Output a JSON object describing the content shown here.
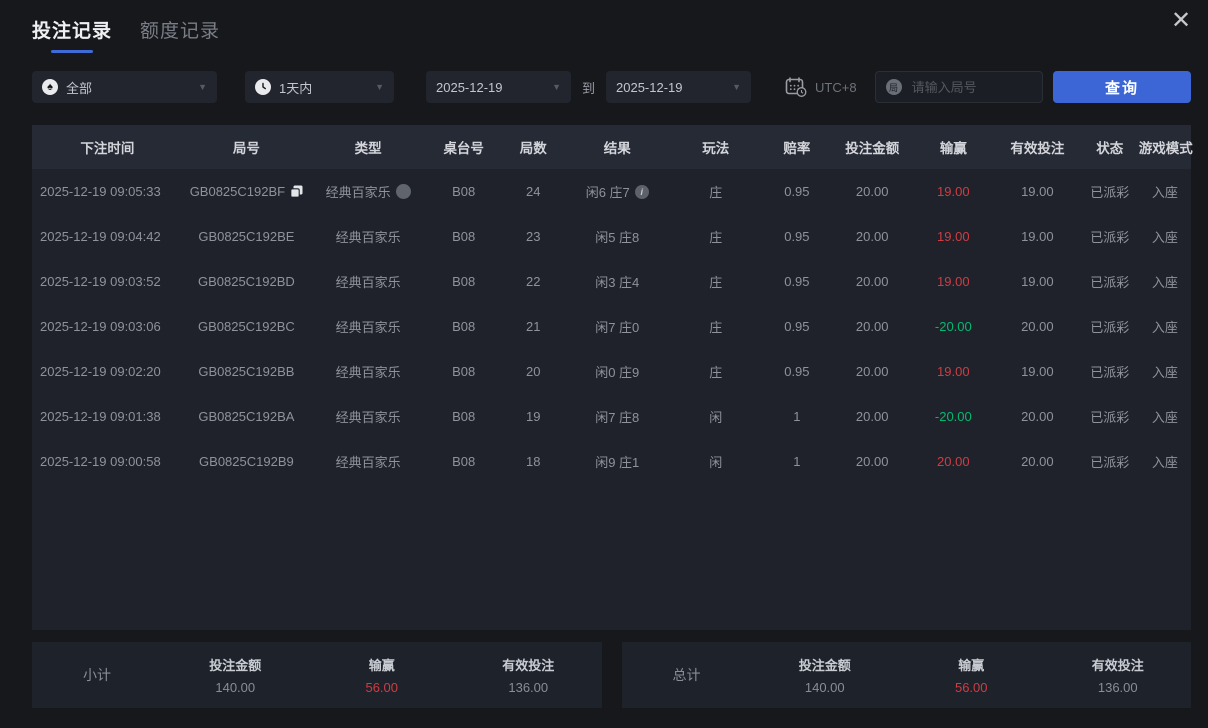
{
  "header": {
    "tabs": [
      {
        "label": "投注记录",
        "active": true
      },
      {
        "label": "额度记录",
        "active": false
      }
    ]
  },
  "filters": {
    "game_type": {
      "value": "全部",
      "icon": "spade-icon"
    },
    "time_range": {
      "value": "1天内",
      "icon": "clock-icon"
    },
    "date_from": "2025-12-19",
    "to_label": "到",
    "date_to": "2025-12-19",
    "timezone": {
      "label": "UTC+8",
      "icon": "calendar-clock-icon"
    },
    "round_input": {
      "placeholder": "请输入局号",
      "icon_char": "局"
    },
    "query_button_label": "查询"
  },
  "table": {
    "columns": [
      "下注时间",
      "局号",
      "类型",
      "桌台号",
      "局数",
      "结果",
      "玩法",
      "赔率",
      "投注金额",
      "输赢",
      "有效投注",
      "状态",
      "游戏模式"
    ],
    "rows": [
      {
        "time": "2025-12-19 09:05:33",
        "round_id": "GB0825C192BF",
        "has_copy_icon": true,
        "type": "经典百家乐",
        "has_type_icon": true,
        "table_no": "B08",
        "round_no": "24",
        "result": "闲6 庄7",
        "has_info_icon": true,
        "play": "庄",
        "odds": "0.95",
        "bet_amount": "20.00",
        "win_loss": "19.00",
        "win_loss_state": "win",
        "valid_bet": "19.00",
        "status": "已派彩",
        "mode": "入座"
      },
      {
        "time": "2025-12-19 09:04:42",
        "round_id": "GB0825C192BE",
        "has_copy_icon": false,
        "type": "经典百家乐",
        "has_type_icon": false,
        "table_no": "B08",
        "round_no": "23",
        "result": "闲5 庄8",
        "has_info_icon": false,
        "play": "庄",
        "odds": "0.95",
        "bet_amount": "20.00",
        "win_loss": "19.00",
        "win_loss_state": "win",
        "valid_bet": "19.00",
        "status": "已派彩",
        "mode": "入座"
      },
      {
        "time": "2025-12-19 09:03:52",
        "round_id": "GB0825C192BD",
        "has_copy_icon": false,
        "type": "经典百家乐",
        "has_type_icon": false,
        "table_no": "B08",
        "round_no": "22",
        "result": "闲3 庄4",
        "has_info_icon": false,
        "play": "庄",
        "odds": "0.95",
        "bet_amount": "20.00",
        "win_loss": "19.00",
        "win_loss_state": "win",
        "valid_bet": "19.00",
        "status": "已派彩",
        "mode": "入座"
      },
      {
        "time": "2025-12-19 09:03:06",
        "round_id": "GB0825C192BC",
        "has_copy_icon": false,
        "type": "经典百家乐",
        "has_type_icon": false,
        "table_no": "B08",
        "round_no": "21",
        "result": "闲7 庄0",
        "has_info_icon": false,
        "play": "庄",
        "odds": "0.95",
        "bet_amount": "20.00",
        "win_loss": "-20.00",
        "win_loss_state": "loss",
        "valid_bet": "20.00",
        "status": "已派彩",
        "mode": "入座"
      },
      {
        "time": "2025-12-19 09:02:20",
        "round_id": "GB0825C192BB",
        "has_copy_icon": false,
        "type": "经典百家乐",
        "has_type_icon": false,
        "table_no": "B08",
        "round_no": "20",
        "result": "闲0 庄9",
        "has_info_icon": false,
        "play": "庄",
        "odds": "0.95",
        "bet_amount": "20.00",
        "win_loss": "19.00",
        "win_loss_state": "win",
        "valid_bet": "19.00",
        "status": "已派彩",
        "mode": "入座"
      },
      {
        "time": "2025-12-19 09:01:38",
        "round_id": "GB0825C192BA",
        "has_copy_icon": false,
        "type": "经典百家乐",
        "has_type_icon": false,
        "table_no": "B08",
        "round_no": "19",
        "result": "闲7 庄8",
        "has_info_icon": false,
        "play": "闲",
        "odds": "1",
        "bet_amount": "20.00",
        "win_loss": "-20.00",
        "win_loss_state": "loss",
        "valid_bet": "20.00",
        "status": "已派彩",
        "mode": "入座"
      },
      {
        "time": "2025-12-19 09:00:58",
        "round_id": "GB0825C192B9",
        "has_copy_icon": false,
        "type": "经典百家乐",
        "has_type_icon": false,
        "table_no": "B08",
        "round_no": "18",
        "result": "闲9 庄1",
        "has_info_icon": false,
        "play": "闲",
        "odds": "1",
        "bet_amount": "20.00",
        "win_loss": "20.00",
        "win_loss_state": "win",
        "valid_bet": "20.00",
        "status": "已派彩",
        "mode": "入座"
      }
    ]
  },
  "summary": {
    "subtotal": {
      "label": "小计",
      "items": [
        {
          "label": "投注金额",
          "value": "140.00",
          "state": "normal"
        },
        {
          "label": "输赢",
          "value": "56.00",
          "state": "win"
        },
        {
          "label": "有效投注",
          "value": "136.00",
          "state": "normal"
        }
      ]
    },
    "total": {
      "label": "总计",
      "items": [
        {
          "label": "投注金额",
          "value": "140.00",
          "state": "normal"
        },
        {
          "label": "输赢",
          "value": "56.00",
          "state": "win"
        },
        {
          "label": "有效投注",
          "value": "136.00",
          "state": "normal"
        }
      ]
    }
  },
  "colors": {
    "accent": "#3c66d6",
    "win": "#cc3e43",
    "loss": "#00bb6d"
  }
}
